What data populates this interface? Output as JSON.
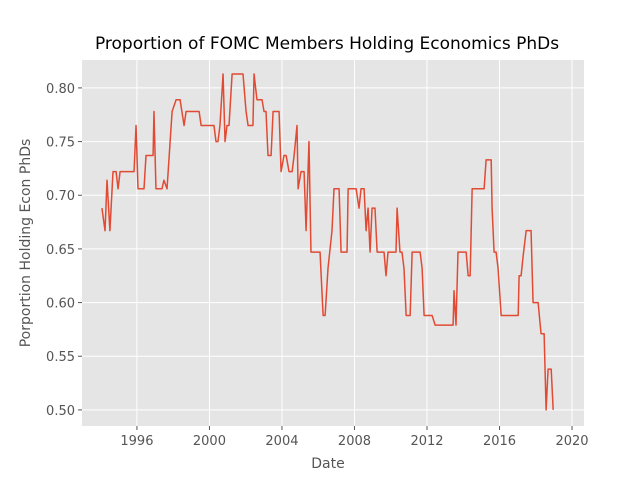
{
  "chart_data": {
    "type": "line",
    "title": "Proportion of FOMC Members Holding Economics PhDs",
    "xlabel": "Date",
    "ylabel": "Porportion Holding Econ PhDs",
    "x": [
      1994.07,
      1994.24,
      1994.35,
      1994.51,
      1994.68,
      1994.85,
      1994.96,
      1995.07,
      1995.84,
      1995.95,
      1996.06,
      1996.39,
      1996.5,
      1996.89,
      1996.94,
      1997.05,
      1997.38,
      1997.49,
      1997.66,
      1997.94,
      1998.16,
      1998.38,
      1998.6,
      1998.71,
      1999.43,
      1999.54,
      2000.25,
      2000.36,
      2000.47,
      2000.58,
      2000.75,
      2000.86,
      2000.97,
      2001.08,
      2001.25,
      2001.85,
      2002.02,
      2002.13,
      2002.4,
      2002.46,
      2002.62,
      2002.9,
      2003.01,
      2003.12,
      2003.23,
      2003.4,
      2003.51,
      2003.84,
      2003.95,
      2004.11,
      2004.23,
      2004.39,
      2004.56,
      2004.67,
      2004.83,
      2004.89,
      2005.05,
      2005.22,
      2005.33,
      2005.49,
      2005.6,
      2006.1,
      2006.27,
      2006.38,
      2006.54,
      2006.76,
      2006.87,
      2007.15,
      2007.26,
      2007.59,
      2007.65,
      2008.09,
      2008.25,
      2008.36,
      2008.53,
      2008.64,
      2008.75,
      2008.86,
      2008.97,
      2009.13,
      2009.25,
      2009.63,
      2009.74,
      2009.85,
      2010.29,
      2010.35,
      2010.51,
      2010.62,
      2010.73,
      2010.85,
      2011.07,
      2011.18,
      2011.62,
      2011.73,
      2011.84,
      2012.28,
      2012.45,
      2013.44,
      2013.49,
      2013.6,
      2013.71,
      2014.16,
      2014.27,
      2014.38,
      2014.49,
      2015.15,
      2015.26,
      2015.54,
      2015.59,
      2015.7,
      2015.81,
      2015.92,
      2016.09,
      2017.03,
      2017.08,
      2017.19,
      2017.3,
      2017.47,
      2017.74,
      2017.85,
      2018.13,
      2018.29,
      2018.46,
      2018.57,
      2018.68,
      2018.85,
      2018.96
    ],
    "series": [
      {
        "color": "#E24A33",
        "values": [
          0.688,
          0.667,
          0.714,
          0.667,
          0.722,
          0.722,
          0.706,
          0.722,
          0.722,
          0.765,
          0.706,
          0.706,
          0.737,
          0.737,
          0.778,
          0.706,
          0.706,
          0.714,
          0.706,
          0.778,
          0.789,
          0.789,
          0.765,
          0.778,
          0.778,
          0.765,
          0.765,
          0.75,
          0.75,
          0.765,
          0.813,
          0.75,
          0.765,
          0.765,
          0.813,
          0.813,
          0.778,
          0.765,
          0.765,
          0.813,
          0.789,
          0.789,
          0.778,
          0.778,
          0.737,
          0.737,
          0.778,
          0.778,
          0.722,
          0.737,
          0.737,
          0.722,
          0.722,
          0.737,
          0.765,
          0.706,
          0.722,
          0.722,
          0.667,
          0.75,
          0.647,
          0.647,
          0.588,
          0.588,
          0.632,
          0.667,
          0.706,
          0.706,
          0.647,
          0.647,
          0.706,
          0.706,
          0.688,
          0.706,
          0.706,
          0.667,
          0.688,
          0.647,
          0.688,
          0.688,
          0.647,
          0.647,
          0.625,
          0.647,
          0.647,
          0.688,
          0.647,
          0.647,
          0.632,
          0.588,
          0.588,
          0.647,
          0.647,
          0.632,
          0.588,
          0.588,
          0.579,
          0.579,
          0.611,
          0.579,
          0.647,
          0.647,
          0.625,
          0.625,
          0.706,
          0.706,
          0.733,
          0.733,
          0.688,
          0.647,
          0.647,
          0.632,
          0.588,
          0.588,
          0.625,
          0.625,
          0.643,
          0.667,
          0.667,
          0.6,
          0.6,
          0.571,
          0.571,
          0.5,
          0.538,
          0.538,
          0.5
        ]
      }
    ],
    "xlim": [
      1992.97,
      2020.66
    ],
    "xticks": [
      1996,
      2000,
      2004,
      2008,
      2012,
      2016,
      2020
    ],
    "ylim": [
      0.485,
      0.826
    ],
    "yticks": [
      {
        "value": 0.5,
        "label": "0.50"
      },
      {
        "value": 0.55,
        "label": "0.55"
      },
      {
        "value": 0.6,
        "label": "0.60"
      },
      {
        "value": 0.65,
        "label": "0.65"
      },
      {
        "value": 0.7,
        "label": "0.70"
      },
      {
        "value": 0.75,
        "label": "0.75"
      },
      {
        "value": 0.8,
        "label": "0.80"
      }
    ],
    "grid": true
  }
}
